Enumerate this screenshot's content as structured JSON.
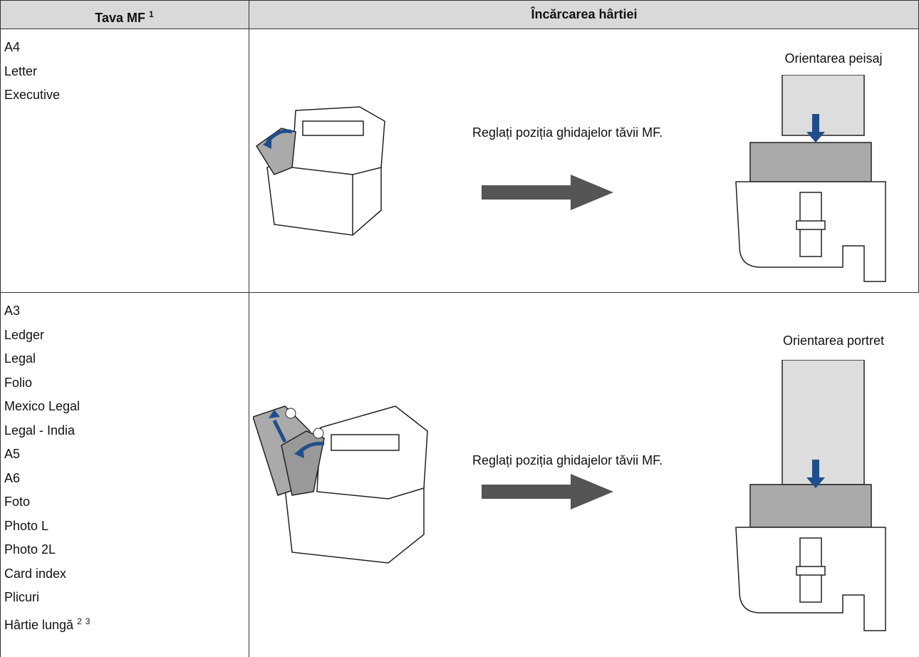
{
  "header": {
    "col1": {
      "text": "Tava MF",
      "sup": "1"
    },
    "col2": "Încărcarea hârtiei"
  },
  "rows": [
    {
      "sizes": [
        "A4",
        "Letter",
        "Executive"
      ],
      "instruction": "Reglați poziția ghidajelor tăvii MF.",
      "orientation": "Orientarea peisaj"
    },
    {
      "sizes": [
        "A3",
        "Ledger",
        "Legal",
        "Folio",
        "Mexico Legal",
        "Legal - India",
        "A5",
        "A6",
        "Foto",
        "Photo L",
        "Photo 2L",
        "Card index",
        "Plicuri"
      ],
      "long_paper": {
        "text": "Hârtie lungă",
        "refs": [
          "2",
          "3"
        ]
      },
      "instruction": "Reglați poziția ghidajelor tăvii MF.",
      "orientation": "Orientarea portret"
    }
  ]
}
